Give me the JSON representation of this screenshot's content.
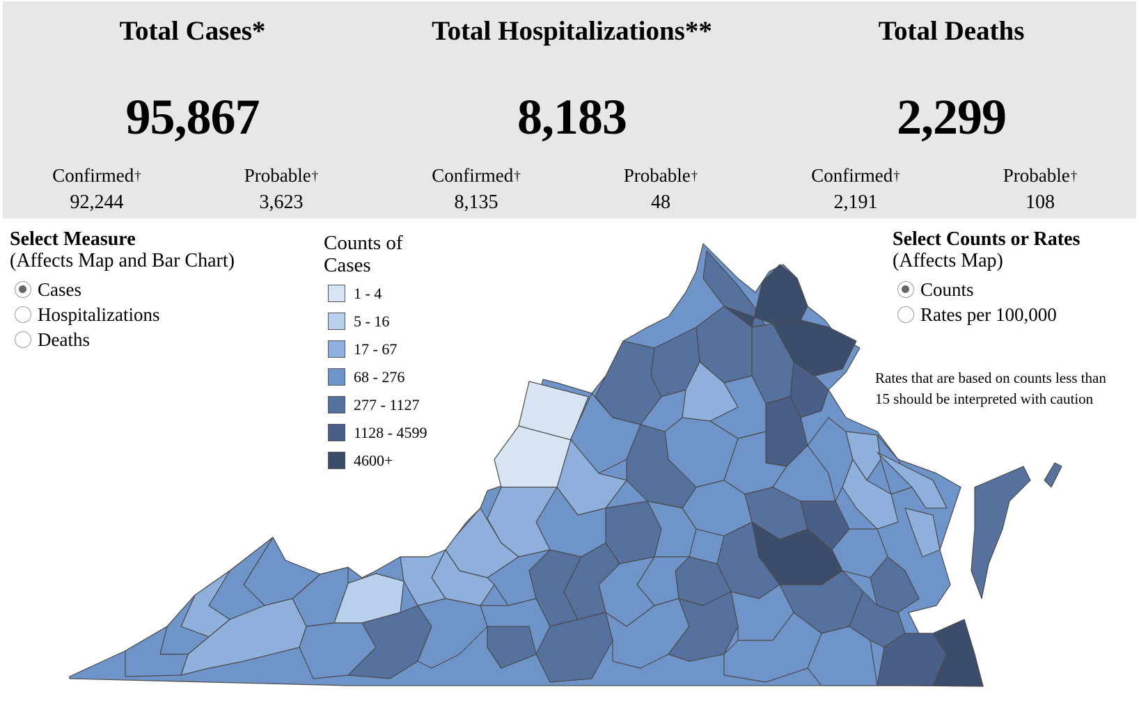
{
  "summary": [
    {
      "title": "Total Cases*",
      "value": "95,867",
      "confirmed_label": "Confirmed",
      "confirmed_value": "92,244",
      "probable_label": "Probable",
      "probable_value": "3,623"
    },
    {
      "title": "Total Hospitalizations**",
      "value": "8,183",
      "confirmed_label": "Confirmed",
      "confirmed_value": "8,135",
      "probable_label": "Probable",
      "probable_value": "48"
    },
    {
      "title": "Total Deaths",
      "value": "2,299",
      "confirmed_label": "Confirmed",
      "confirmed_value": "2,191",
      "probable_label": "Probable",
      "probable_value": "108"
    }
  ],
  "dagger": "†",
  "measure_panel": {
    "title": "Select Measure",
    "subtitle": "(Affects Map and Bar Chart)",
    "options": [
      {
        "label": "Cases",
        "selected": true
      },
      {
        "label": "Hospitalizations",
        "selected": false
      },
      {
        "label": "Deaths",
        "selected": false
      }
    ]
  },
  "rate_panel": {
    "title": "Select Counts or Rates",
    "subtitle": "(Affects Map)",
    "options": [
      {
        "label": "Counts",
        "selected": true
      },
      {
        "label": "Rates per 100,000",
        "selected": false
      }
    ]
  },
  "legend": {
    "title": "Counts of Cases",
    "items": [
      {
        "label": "1 - 4",
        "color": "#d6e4f3"
      },
      {
        "label": "5 - 16",
        "color": "#b9d0ec"
      },
      {
        "label": "17 - 67",
        "color": "#8fafdc"
      },
      {
        "label": "68 - 276",
        "color": "#6f94c9"
      },
      {
        "label": "277 - 1127",
        "color": "#56719d"
      },
      {
        "label": "1128 - 4599",
        "color": "#4a5f88"
      },
      {
        "label": "4600+",
        "color": "#3c4d6b"
      }
    ]
  },
  "note": "Rates that are based on counts less than 15 should be interpreted with caution",
  "map": {
    "region": "Virginia",
    "color_key": "legend.items"
  }
}
